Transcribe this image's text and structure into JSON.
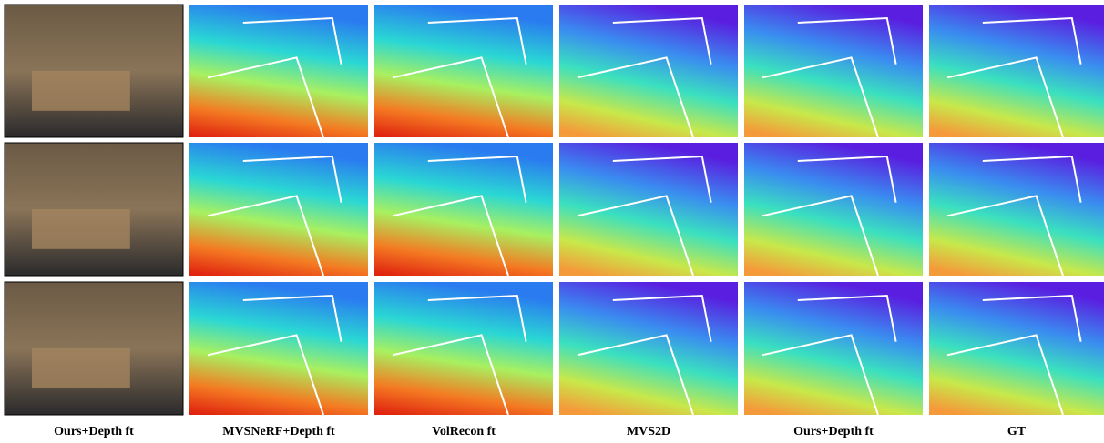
{
  "figure": {
    "column_labels": [
      "Ours+Depth ft",
      "MVSNeRF+Depth ft",
      "VolRecon ft",
      "MVS2D",
      "Ours+Depth ft",
      "GT"
    ]
  }
}
